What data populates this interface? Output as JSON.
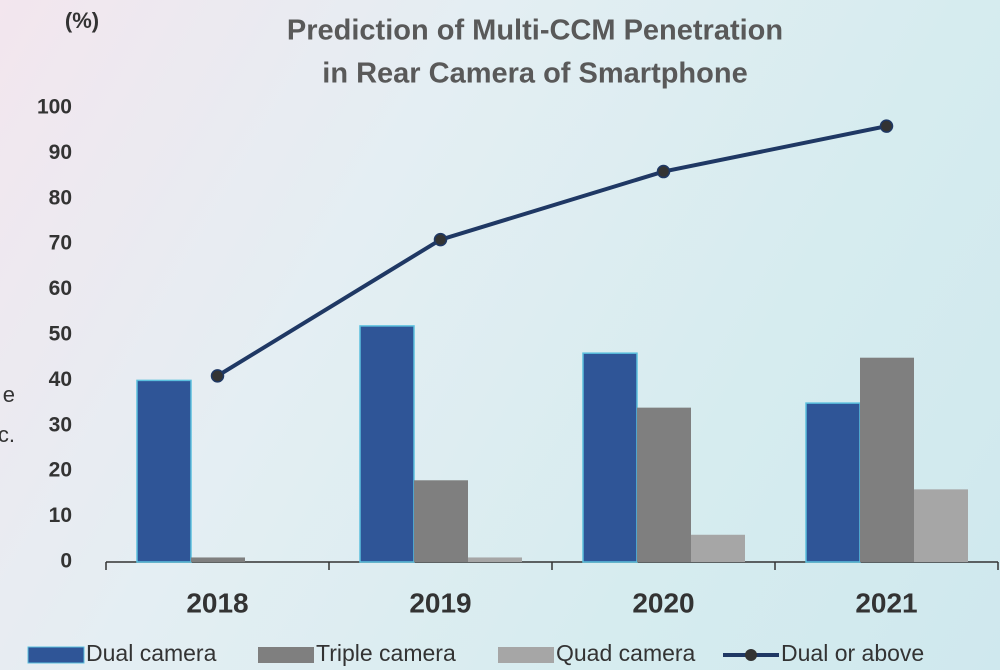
{
  "chart_data": {
    "type": "bar",
    "title": [
      "Prediction of Multi-CCM Penetration",
      "in Rear Camera of Smartphone"
    ],
    "y_label": "(%)",
    "annotations": [
      "e",
      "c."
    ],
    "categories": [
      "2018",
      "2019",
      "2020",
      "2021"
    ],
    "series": [
      {
        "name": "Dual camera",
        "type": "bar",
        "color": "#2f5597",
        "values": [
          40,
          52,
          46,
          35
        ]
      },
      {
        "name": "Triple camera",
        "type": "bar",
        "color": "#7f7f7f",
        "values": [
          1,
          18,
          34,
          45
        ]
      },
      {
        "name": "Quad camera",
        "type": "bar",
        "color": "#a6a6a6",
        "values": [
          0,
          1,
          6,
          16
        ]
      },
      {
        "name": "Dual or above",
        "type": "line",
        "color": "#1f3864",
        "values": [
          41,
          71,
          86,
          96
        ]
      }
    ],
    "ylim": [
      0,
      100
    ],
    "yticks": [
      0,
      10,
      20,
      30,
      40,
      50,
      60,
      70,
      80,
      90,
      100
    ],
    "grid": false,
    "legend": "bottom"
  }
}
